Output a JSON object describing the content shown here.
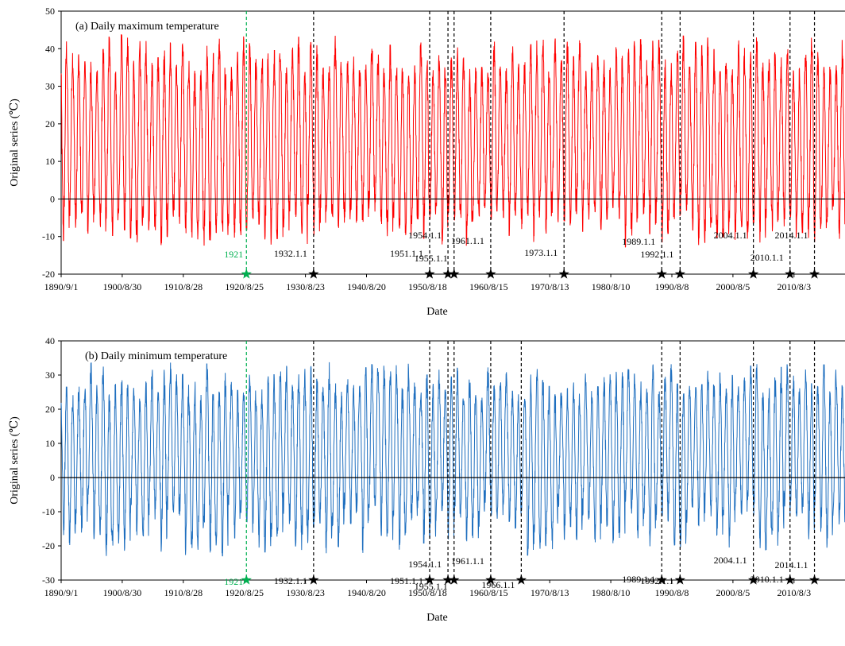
{
  "chart_data": [
    {
      "type": "line",
      "title": "(a) Daily maximum temperature",
      "xlabel": "Date",
      "ylabel": "Original series (℃)",
      "ylim": [
        -20,
        50
      ],
      "yticks": [
        -20,
        -10,
        0,
        10,
        20,
        30,
        40,
        50
      ],
      "xticks": [
        "1890/9/1",
        "1900/8/30",
        "1910/8/28",
        "1920/8/25",
        "1930/8/23",
        "1940/8/20",
        "1950/8/18",
        "1960/8/15",
        "1970/8/13",
        "1980/8/10",
        "1990/8/8",
        "2000/8/5",
        "2010/8/3"
      ],
      "xrange_years": [
        1890.67,
        2019.0
      ],
      "series_color": "#ff0000",
      "seasonal_cycle": {
        "annual_max_range": [
          34,
          44
        ],
        "annual_min_range": [
          -13,
          -3
        ],
        "reference_line": 0
      },
      "breakpoints": [
        {
          "label": "1921",
          "year": 1921.0,
          "color": "#00b050"
        },
        {
          "label": "1932.1.1",
          "year": 1932.0,
          "color": "#000000"
        },
        {
          "label": "1951.1.1",
          "year": 1951.0,
          "color": "#000000"
        },
        {
          "label": "1954.1.1",
          "year": 1954.0,
          "color": "#000000"
        },
        {
          "label": "1955.1.1",
          "year": 1955.0,
          "color": "#000000"
        },
        {
          "label": "1961.1.1",
          "year": 1961.0,
          "color": "#000000"
        },
        {
          "label": "1973.1.1",
          "year": 1973.0,
          "color": "#000000"
        },
        {
          "label": "1989.1.1",
          "year": 1989.0,
          "color": "#000000"
        },
        {
          "label": "1992.1.1",
          "year": 1992.0,
          "color": "#000000"
        },
        {
          "label": "2004.1.1",
          "year": 2004.0,
          "color": "#000000"
        },
        {
          "label": "2010.1.1",
          "year": 2010.0,
          "color": "#000000"
        },
        {
          "label": "2014.1.1",
          "year": 2014.0,
          "color": "#000000"
        }
      ]
    },
    {
      "type": "line",
      "title": "(b) Daily minimum temperature",
      "xlabel": "Date",
      "ylabel": "Original series (℃)",
      "ylim": [
        -30,
        40
      ],
      "yticks": [
        -30,
        -20,
        -10,
        0,
        10,
        20,
        30,
        40
      ],
      "xticks": [
        "1890/9/1",
        "1900/8/30",
        "1910/8/28",
        "1920/8/25",
        "1930/8/23",
        "1940/8/20",
        "1950/8/18",
        "1960/8/15",
        "1970/8/13",
        "1980/8/10",
        "1990/8/8",
        "2000/8/5",
        "2010/8/3"
      ],
      "xrange_years": [
        1890.67,
        2019.0
      ],
      "series_color": "#1f6fbf",
      "seasonal_cycle": {
        "annual_max_range": [
          24,
          34
        ],
        "annual_min_range": [
          -23,
          -8
        ],
        "reference_line": 0
      },
      "breakpoints": [
        {
          "label": "1921",
          "year": 1921.0,
          "color": "#00b050"
        },
        {
          "label": "1932.1.1",
          "year": 1932.0,
          "color": "#000000"
        },
        {
          "label": "1951.1.1",
          "year": 1951.0,
          "color": "#000000"
        },
        {
          "label": "1954.1.1",
          "year": 1954.0,
          "color": "#000000"
        },
        {
          "label": "1955.1.1",
          "year": 1955.0,
          "color": "#000000"
        },
        {
          "label": "1961.1.1",
          "year": 1961.0,
          "color": "#000000"
        },
        {
          "label": "1966.1.1",
          "year": 1966.0,
          "color": "#000000"
        },
        {
          "label": "1989.1.1",
          "year": 1989.0,
          "color": "#000000"
        },
        {
          "label": "1992.1.1",
          "year": 1992.0,
          "color": "#000000"
        },
        {
          "label": "2004.1.1",
          "year": 2004.0,
          "color": "#000000"
        },
        {
          "label": "2010.1.1",
          "year": 2010.0,
          "color": "#000000"
        },
        {
          "label": "2014.1.1",
          "year": 2014.0,
          "color": "#000000"
        }
      ]
    }
  ]
}
